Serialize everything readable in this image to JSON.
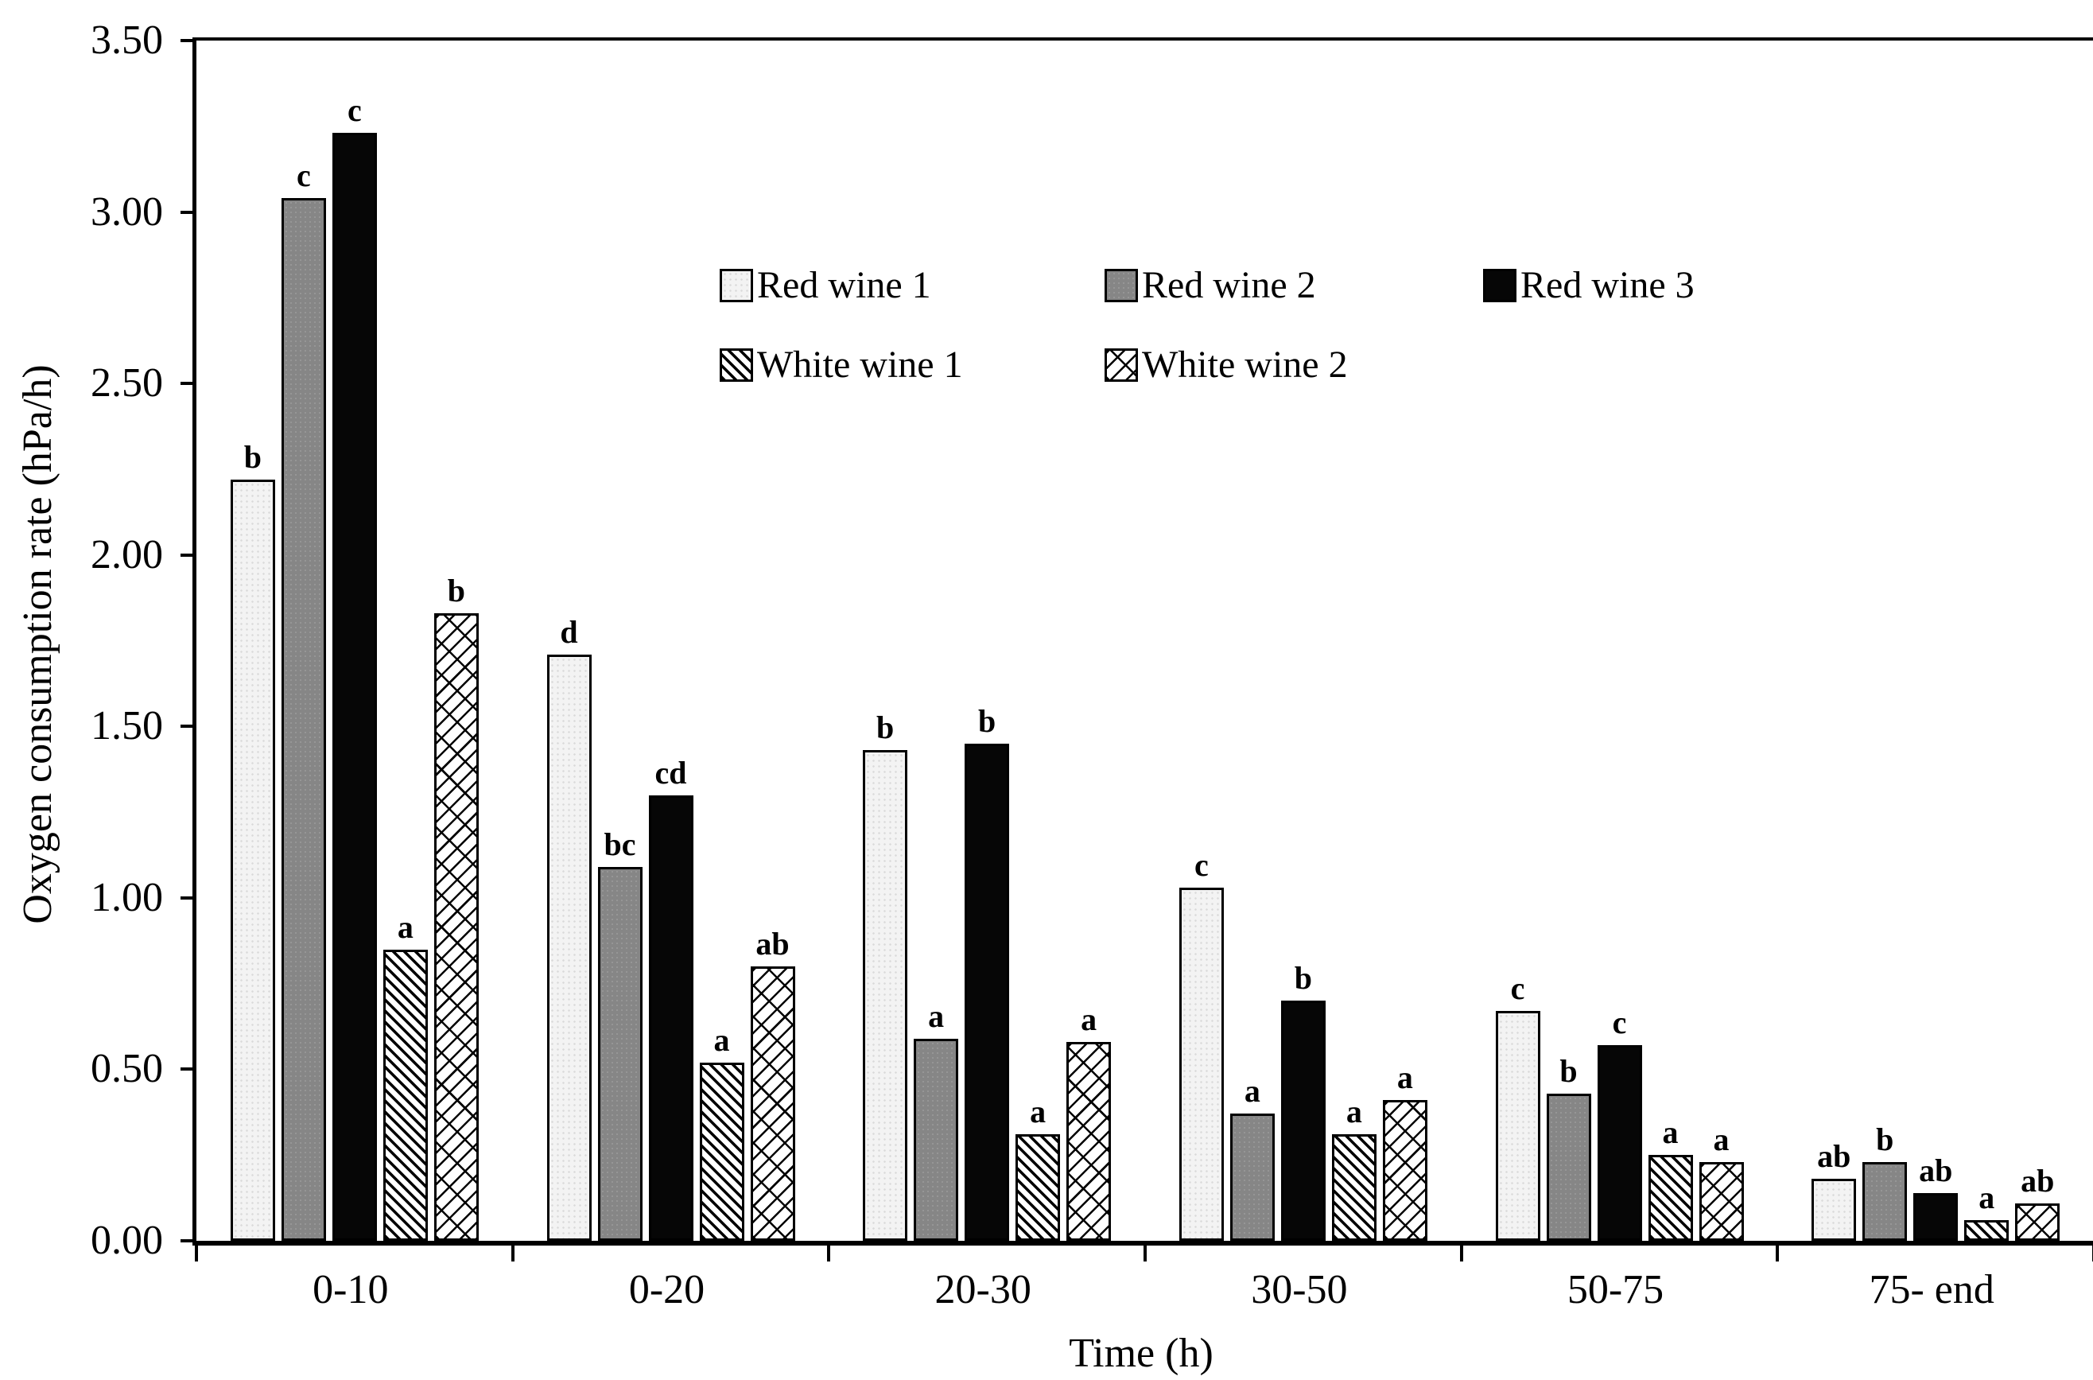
{
  "chart_data": {
    "type": "bar",
    "title": "",
    "xlabel": "Time (h)",
    "ylabel": "Oxygen consumption rate (hPa/h)",
    "ylim": [
      0,
      3.5
    ],
    "ytick_step": 0.5,
    "ytick_labels": [
      "0.00",
      "0.50",
      "1.00",
      "1.50",
      "2.00",
      "2.50",
      "3.00",
      "3.50"
    ],
    "grid": "off",
    "frame": "closed-box",
    "categories": [
      "0-10",
      "0-20",
      "20-30",
      "30-50",
      "50-75",
      "75- end"
    ],
    "series": [
      {
        "name": "Red wine 1",
        "pattern": "light-speckle-fill",
        "color": "#f3f3f3",
        "values": [
          2.22,
          1.71,
          1.43,
          1.03,
          0.67,
          0.18
        ],
        "letters": [
          "b",
          "d",
          "b",
          "c",
          "c",
          "ab"
        ]
      },
      {
        "name": "Red wine 2",
        "pattern": "gray-fill",
        "color": "#868686",
        "values": [
          3.04,
          1.09,
          0.59,
          0.37,
          0.43,
          0.23
        ],
        "letters": [
          "c",
          "bc",
          "a",
          "a",
          "b",
          "b"
        ]
      },
      {
        "name": "Red wine 3",
        "pattern": "black-fill",
        "color": "#060606",
        "values": [
          3.23,
          1.3,
          1.45,
          0.7,
          0.57,
          0.14
        ],
        "letters": [
          "c",
          "cd",
          "b",
          "b",
          "c",
          "ab"
        ]
      },
      {
        "name": "White wine 1",
        "pattern": "dense-diagonal-hatch",
        "color": "#ffffff",
        "values": [
          0.85,
          0.52,
          0.31,
          0.31,
          0.25,
          0.06
        ],
        "letters": [
          "a",
          "a",
          "a",
          "a",
          "a",
          "a"
        ]
      },
      {
        "name": "White wine 2",
        "pattern": "light-diagonal-mesh",
        "color": "#ffffff",
        "values": [
          1.83,
          0.8,
          0.58,
          0.41,
          0.23,
          0.11
        ],
        "letters": [
          "b",
          "ab",
          "a",
          "a",
          "a",
          "ab"
        ]
      }
    ],
    "legend": {
      "position": "inside-top-center",
      "rows": [
        [
          "Red wine 1",
          "Red wine 2",
          "Red wine 3"
        ],
        [
          "White wine 1",
          "White wine 2"
        ]
      ]
    }
  }
}
